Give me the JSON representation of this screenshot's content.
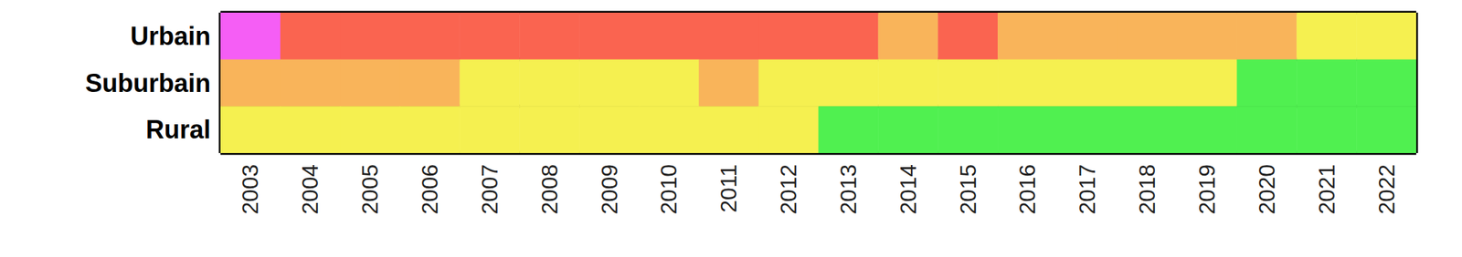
{
  "chart_data": {
    "type": "timeline",
    "categories": [
      "2003",
      "2004",
      "2005",
      "2006",
      "2007",
      "2008",
      "2009",
      "2010",
      "2011",
      "2012",
      "2013",
      "2014",
      "2015",
      "2016",
      "2017",
      "2018",
      "2019",
      "2020",
      "2021",
      "2022"
    ],
    "series": [
      {
        "name": "Urbain",
        "colors": [
          "#f55ef5",
          "#fa6450",
          "#fa6450",
          "#fa6450",
          "#fa6450",
          "#fa6450",
          "#fa6450",
          "#fa6450",
          "#fa6450",
          "#fa6450",
          "#fa6450",
          "#f9b45a",
          "#fa6450",
          "#f9b45a",
          "#f9b45a",
          "#f9b45a",
          "#f9b45a",
          "#f9b45a",
          "#f5f050",
          "#f5f050"
        ]
      },
      {
        "name": "Suburbain",
        "colors": [
          "#f9b45a",
          "#f9b45a",
          "#f9b45a",
          "#f9b45a",
          "#f5f050",
          "#f5f050",
          "#f5f050",
          "#f5f050",
          "#f9b45a",
          "#f5f050",
          "#f5f050",
          "#f5f050",
          "#f5f050",
          "#f5f050",
          "#f5f050",
          "#f5f050",
          "#f5f050",
          "#50f050",
          "#50f050",
          "#50f050"
        ]
      },
      {
        "name": "Rural",
        "colors": [
          "#f5f050",
          "#f5f050",
          "#f5f050",
          "#f5f050",
          "#f5f050",
          "#f5f050",
          "#f5f050",
          "#f5f050",
          "#f5f050",
          "#f5f050",
          "#50f050",
          "#50f050",
          "#50f050",
          "#50f050",
          "#50f050",
          "#50f050",
          "#50f050",
          "#50f050",
          "#50f050",
          "#50f050"
        ]
      }
    ]
  }
}
